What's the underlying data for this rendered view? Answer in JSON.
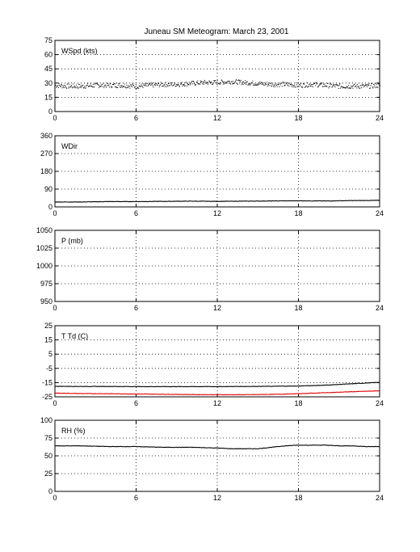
{
  "figure": {
    "title": "Juneau SM Meteogram:      March 23, 2001"
  },
  "chart_data": [
    {
      "type": "scatter",
      "label": "WSpd (kts)",
      "xlim": [
        0,
        24
      ],
      "xticks": [
        0,
        6,
        12,
        18,
        24
      ],
      "ylim": [
        0,
        75
      ],
      "yticks": [
        0,
        15,
        30,
        45,
        60,
        75
      ],
      "grid": true,
      "series": [
        {
          "color": "#000000",
          "style": "dots",
          "x": [
            0,
            1,
            2,
            3,
            4,
            5,
            6,
            7,
            8,
            9,
            10,
            11,
            12,
            13,
            14,
            15,
            16,
            17,
            18,
            19,
            20,
            21,
            22,
            23,
            24
          ],
          "y": [
            28,
            27,
            27,
            28,
            28,
            28,
            27,
            28,
            29,
            29,
            30,
            31,
            31,
            32,
            31,
            30,
            29,
            29,
            28,
            29,
            28,
            27,
            27,
            27,
            28
          ]
        }
      ]
    },
    {
      "type": "line",
      "label": "WDir",
      "xlim": [
        0,
        24
      ],
      "xticks": [
        0,
        6,
        12,
        18,
        24
      ],
      "ylim": [
        0,
        360
      ],
      "yticks": [
        0,
        90,
        180,
        270,
        360
      ],
      "grid": true,
      "series": [
        {
          "color": "#000000",
          "style": "line",
          "x": [
            0,
            2,
            4,
            6,
            8,
            10,
            12,
            14,
            16,
            18,
            20,
            22,
            24
          ],
          "y": [
            25,
            25,
            27,
            27,
            28,
            29,
            28,
            29,
            30,
            31,
            30,
            32,
            33
          ]
        }
      ]
    },
    {
      "type": "line",
      "label": "P (mb)",
      "xlim": [
        0,
        24
      ],
      "xticks": [
        0,
        6,
        12,
        18,
        24
      ],
      "ylim": [
        950,
        1050
      ],
      "yticks": [
        950,
        975,
        1000,
        1025,
        1050
      ],
      "grid": true,
      "series": []
    },
    {
      "type": "line",
      "label": "T Td (C)",
      "xlim": [
        0,
        24
      ],
      "xticks": [
        0,
        6,
        12,
        18,
        24
      ],
      "ylim": [
        -25,
        25
      ],
      "yticks": [
        -25,
        -15,
        -5,
        5,
        15,
        25
      ],
      "grid": true,
      "series": [
        {
          "color": "#000000",
          "style": "line",
          "x": [
            0,
            2,
            4,
            6,
            8,
            10,
            12,
            14,
            16,
            18,
            20,
            22,
            24
          ],
          "y": [
            -17.6,
            -17.7,
            -17.7,
            -17.8,
            -17.8,
            -17.8,
            -17.8,
            -17.7,
            -17.6,
            -17.4,
            -16.8,
            -15.8,
            -14.8
          ]
        },
        {
          "color": "#e00000",
          "style": "line",
          "x": [
            0,
            2,
            4,
            6,
            8,
            10,
            12,
            14,
            16,
            18,
            20,
            22,
            24
          ],
          "y": [
            -22.4,
            -22.7,
            -22.8,
            -23.0,
            -23.2,
            -23.4,
            -23.5,
            -23.5,
            -23.3,
            -22.8,
            -22.1,
            -21.4,
            -20.8
          ]
        }
      ]
    },
    {
      "type": "line",
      "label": "RH (%)",
      "xlim": [
        0,
        24
      ],
      "xticks": [
        0,
        6,
        12,
        18,
        24
      ],
      "ylim": [
        0,
        100
      ],
      "yticks": [
        0,
        25,
        50,
        75,
        100
      ],
      "grid": true,
      "series": [
        {
          "color": "#000000",
          "style": "line",
          "x": [
            0,
            2,
            4,
            6,
            8,
            10,
            12,
            13,
            14,
            15,
            16,
            17,
            18,
            19,
            20,
            21,
            22,
            23,
            24
          ],
          "y": [
            64,
            64,
            63,
            63,
            62,
            62,
            61,
            60,
            60,
            60,
            62,
            64,
            65,
            65,
            65,
            64,
            64,
            63,
            63
          ]
        }
      ]
    }
  ]
}
